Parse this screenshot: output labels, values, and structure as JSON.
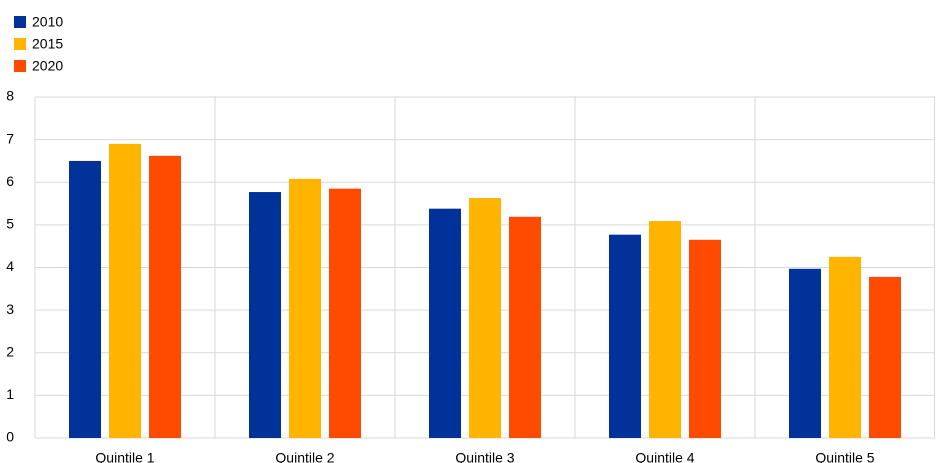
{
  "chart_data": {
    "type": "bar",
    "categories": [
      "Quintile 1",
      "Quintile 2",
      "Quintile 3",
      "Quintile 4",
      "Quintile 5"
    ],
    "series": [
      {
        "name": "2010",
        "color": "#003299",
        "values": [
          6.5,
          5.77,
          5.38,
          4.77,
          3.97
        ]
      },
      {
        "name": "2015",
        "color": "#ffb400",
        "values": [
          6.9,
          6.08,
          5.63,
          5.09,
          4.25
        ]
      },
      {
        "name": "2020",
        "color": "#ff4b00",
        "values": [
          6.62,
          5.85,
          5.19,
          4.65,
          3.78
        ]
      }
    ],
    "ylim": [
      0,
      8
    ],
    "yticks": [
      0,
      1,
      2,
      3,
      4,
      5,
      6,
      7,
      8
    ],
    "grid": true
  }
}
